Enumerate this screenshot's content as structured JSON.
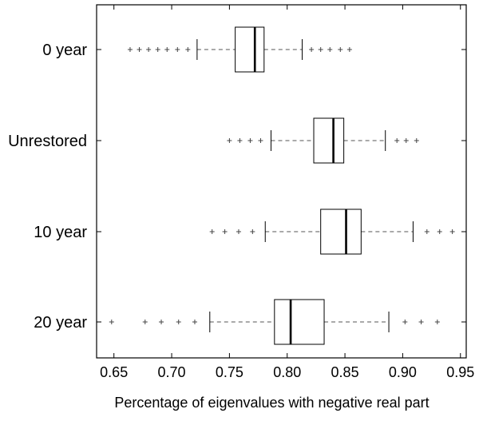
{
  "chart_data": {
    "type": "boxplot",
    "orientation": "horizontal",
    "title": "",
    "xlabel": "Percentage of eigenvalues with negative real part",
    "ylabel": "",
    "xlim": [
      0.635,
      0.955
    ],
    "xticks": [
      0.65,
      0.7,
      0.75,
      0.8,
      0.85,
      0.9,
      0.95
    ],
    "xtick_labels": [
      "0.65",
      "0.70",
      "0.75",
      "0.80",
      "0.85",
      "0.90",
      "0.95"
    ],
    "grid": false,
    "colors": {
      "box": "#000000",
      "median": "#000000",
      "whisker": "#555555",
      "outlier": "#444444",
      "background": "#ffffff"
    },
    "categories": [
      "0 year",
      "Unrestored",
      "10 year",
      "20 year"
    ],
    "groups": [
      {
        "label": "0 year",
        "whisker_low": 0.722,
        "q1": 0.755,
        "median": 0.772,
        "q3": 0.78,
        "whisker_high": 0.813,
        "outliers": [
          0.664,
          0.672,
          0.68,
          0.688,
          0.696,
          0.705,
          0.714,
          0.821,
          0.829,
          0.837,
          0.846,
          0.854
        ]
      },
      {
        "label": "Unrestored",
        "whisker_low": 0.786,
        "q1": 0.823,
        "median": 0.84,
        "q3": 0.849,
        "whisker_high": 0.885,
        "outliers": [
          0.75,
          0.759,
          0.768,
          0.777,
          0.895,
          0.903,
          0.912
        ]
      },
      {
        "label": "10 year",
        "whisker_low": 0.781,
        "q1": 0.829,
        "median": 0.851,
        "q3": 0.864,
        "whisker_high": 0.909,
        "outliers": [
          0.735,
          0.746,
          0.758,
          0.77,
          0.921,
          0.932,
          0.943
        ]
      },
      {
        "label": "20 year",
        "whisker_low": 0.733,
        "q1": 0.789,
        "median": 0.803,
        "q3": 0.832,
        "whisker_high": 0.888,
        "outliers": [
          0.648,
          0.677,
          0.691,
          0.706,
          0.72,
          0.902,
          0.916,
          0.93
        ]
      }
    ]
  }
}
